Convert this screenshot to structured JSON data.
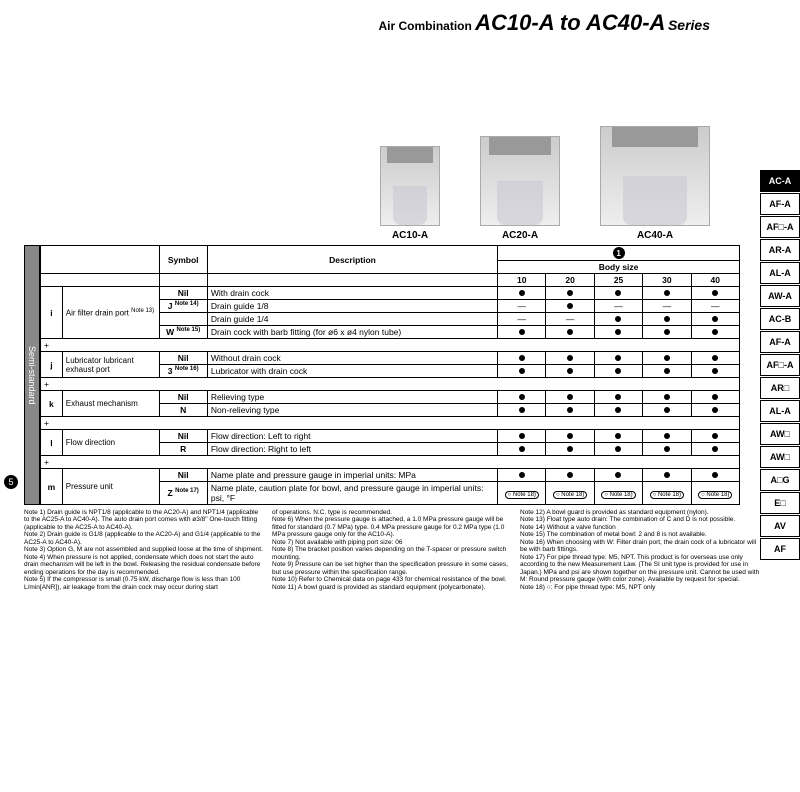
{
  "header": {
    "pre": "Air Combination ",
    "main": "AC10-A to AC40-A",
    "post": " Series"
  },
  "products": [
    {
      "label": "AC10-A"
    },
    {
      "label": "AC20-A"
    },
    {
      "label": "AC40-A"
    }
  ],
  "sideTabs": [
    "AC-A",
    "AF-A",
    "AF□-A",
    "AR-A",
    "AL-A",
    "AW-A",
    "AC-B",
    "AF-A",
    "AF□-A",
    "AR□",
    "AL-A",
    "AW□",
    "AW□",
    "A□G",
    "E□",
    "AV",
    "AF"
  ],
  "activeTab": 0,
  "circleNum": "5",
  "vbarLabel": "Semi-standard",
  "topCircle": "1",
  "thead": {
    "symbol": "Symbol",
    "description": "Description",
    "bodysize": "Body size",
    "sizes": [
      "10",
      "20",
      "25",
      "30",
      "40"
    ]
  },
  "groups": [
    {
      "key": "i",
      "label": "Air filter drain port",
      "labelNote": "Note 13)",
      "rows": [
        {
          "sym": "Nil",
          "desc": "With drain cock",
          "cells": [
            "●",
            "●",
            "●",
            "●",
            "●"
          ]
        },
        {
          "sym": "J",
          "symNote": "Note 14)",
          "desc": "Drain guide 1/8",
          "cells": [
            "—",
            "●",
            "—",
            "—",
            "—"
          ]
        },
        {
          "sym": "",
          "desc": "Drain guide 1/4",
          "cells": [
            "—",
            "—",
            "●",
            "●",
            "●"
          ]
        },
        {
          "sym": "W",
          "symNote": "Note 15)",
          "desc": "Drain cock with barb fitting (for ø6 x ø4 nylon tube)",
          "cells": [
            "●",
            "●",
            "●",
            "●",
            "●"
          ]
        }
      ],
      "plus": true
    },
    {
      "key": "j",
      "label": "Lubricator lubricant exhaust port",
      "rows": [
        {
          "sym": "Nil",
          "desc": "Without drain cock",
          "cells": [
            "●",
            "●",
            "●",
            "●",
            "●"
          ]
        },
        {
          "sym": "3",
          "symNote": "Note 16)",
          "desc": "Lubricator with drain cock",
          "cells": [
            "●",
            "●",
            "●",
            "●",
            "●"
          ]
        }
      ],
      "plus": true
    },
    {
      "key": "k",
      "label": "Exhaust mechanism",
      "rows": [
        {
          "sym": "Nil",
          "desc": "Relieving type",
          "cells": [
            "●",
            "●",
            "●",
            "●",
            "●"
          ]
        },
        {
          "sym": "N",
          "desc": "Non-relieving type",
          "cells": [
            "●",
            "●",
            "●",
            "●",
            "●"
          ]
        }
      ],
      "plus": true
    },
    {
      "key": "l",
      "label": "Flow direction",
      "rows": [
        {
          "sym": "Nil",
          "desc": "Flow direction: Left to right",
          "cells": [
            "●",
            "●",
            "●",
            "●",
            "●"
          ]
        },
        {
          "sym": "R",
          "desc": "Flow direction: Right to left",
          "cells": [
            "●",
            "●",
            "●",
            "●",
            "●"
          ]
        }
      ],
      "plus": true
    },
    {
      "key": "m",
      "label": "Pressure unit",
      "rows": [
        {
          "sym": "Nil",
          "desc": "Name plate and pressure gauge in imperial units: MPa",
          "cells": [
            "●",
            "●",
            "●",
            "●",
            "●"
          ]
        },
        {
          "sym": "Z",
          "symNote": "Note 17)",
          "desc": "Name plate, caution plate for bowl, and pressure gauge in imperial units: psi, °F",
          "cells": [
            "Note 18)",
            "Note 18)",
            "Note 18)",
            "Note 18)",
            "Note 18)"
          ]
        }
      ]
    }
  ],
  "notes": {
    "col1": [
      "Note 1) Drain guide is NPT1/8 (applicable to the AC20-A) and NPT1/4 (applicable to the AC25-A to AC40-A). The auto drain port comes with ø3/8\" One-touch fitting (applicable to the AC25-A to AC40-A).",
      "Note 2) Drain guide is G1/8 (applicable to the AC20-A) and G1/4 (applicable to the AC25-A to AC40-A).",
      "Note 3) Option G, M are not assembled and supplied loose at the time of shipment.",
      "Note 4) When pressure is not applied, condensate which does not start the auto drain mechanism will be left in the bowl. Releasing the residual condensate before ending operations for the day is recommended.",
      "Note 5) If the compressor is small (0.75 kW, discharge flow is less than 100 L/min[ANR]), air leakage from the drain cock may occur during start"
    ],
    "col2": [
      "of operations. N.C. type is recommended.",
      "Note 6) When the pressure gauge is attached, a 1.0 MPa pressure gauge will be fitted for standard (0.7 MPa) type. 0.4 MPa pressure gauge for 0.2 MPa type (1.0 MPa pressure gauge only for the AC10-A).",
      "Note 7) Not available with piping port size: 06",
      "Note 8) The bracket position varies depending on the T-spacer or pressure switch mounting.",
      "Note 9) Pressure can be set higher than the specification pressure in some cases, but use pressure within the specification range.",
      "Note 10) Refer to Chemical data on page 433 for chemical resistance of the bowl.",
      "Note 11) A bowl guard is provided as standard equipment (polycarbonate)."
    ],
    "col3": [
      "Note 12) A bowl guard is provided as standard equipment (nylon).",
      "Note 13) Float type auto drain: The combination of C and D is not possible.",
      "Note 14) Without a valve function",
      "Note 15) The combination of metal bowl: 2 and 8 is not available.",
      "Note 16) When choosing with W: Filter drain port, the drain cock of a lubricator will be with barb fittings.",
      "Note 17) For pipe thread type: M5, NPT. This product is for overseas use only according to the new Measurement Law. (The SI unit type is provided for use in Japan.) MPa and psi are shown together on the pressure unit. Cannot be used with M: Round pressure gauge (with color zone). Available by request for special.",
      "Note 18) ○: For pipe thread type: M5, NPT only"
    ]
  }
}
